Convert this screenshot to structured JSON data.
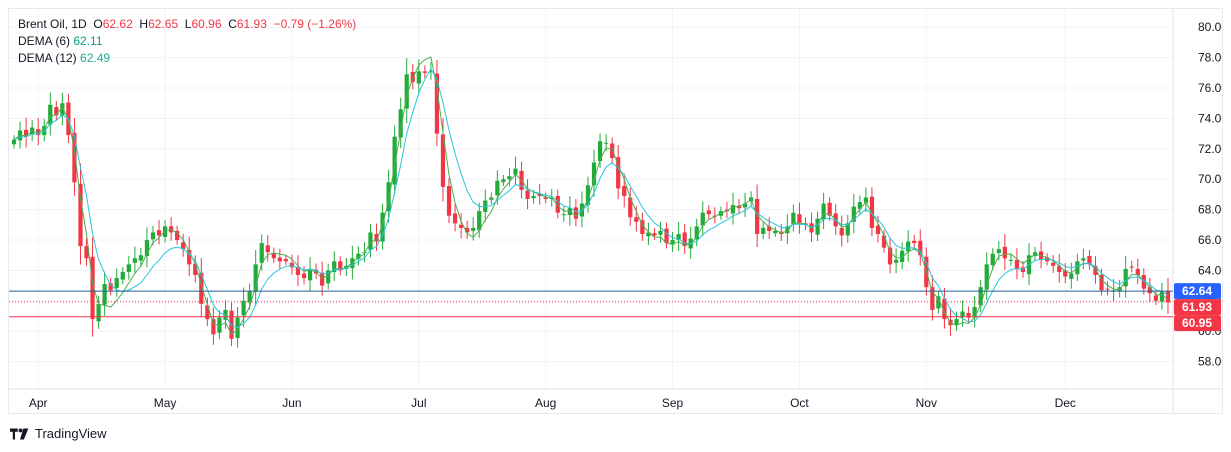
{
  "legend": {
    "symbol": "Brent Oil",
    "interval": "1D",
    "o_label": "O",
    "o_value": "62.62",
    "h_label": "H",
    "h_value": "62.65",
    "l_label": "L",
    "l_value": "60.96",
    "c_label": "C",
    "c_value": "61.93",
    "change": "−0.79 (−1.26%)",
    "dema6_label": "DEMA (6)",
    "dema6_value": "62.11",
    "dema12_label": "DEMA (12)",
    "dema12_value": "62.49"
  },
  "footer": {
    "brand": "TradingView",
    "logo_icon": "tradingview-logo-icon"
  },
  "chart_data": {
    "type": "candlestick",
    "interval": "1D",
    "y_axis_ticks": [
      "58.00",
      "60.00",
      "62.00",
      "64.00",
      "66.00",
      "68.00",
      "70.00",
      "72.00",
      "74.00",
      "76.00",
      "78.00",
      "80.00"
    ],
    "ylim": [
      56.2,
      81.2
    ],
    "x_axis_ticks": [
      "Apr",
      "May",
      "Jun",
      "Jul",
      "Aug",
      "Sep",
      "Oct",
      "Nov",
      "Dec"
    ],
    "price_labels": [
      {
        "value": "62.64",
        "color": "#2962ff",
        "line": "solid",
        "line_color": "#2a5d8f"
      },
      {
        "value": "61.93",
        "color": "#f23645",
        "line": "dotted",
        "line_color": "#f23645"
      },
      {
        "value": "60.95",
        "color": "#f23645",
        "line": "solid",
        "line_color": "#f23645"
      }
    ],
    "colors": {
      "up": "#22ab3a",
      "down": "#f23645",
      "dema6": "#4caf50",
      "dema12": "#26c6da",
      "grid": "#f0f3fa",
      "axis_text": "#131722"
    },
    "closes": [
      72.6,
      73.2,
      72.8,
      73.4,
      72.9,
      73.5,
      74.9,
      74.2,
      75.0,
      72.9,
      69.8,
      65.6,
      64.8,
      60.8,
      61.8,
      63.1,
      62.7,
      63.5,
      63.9,
      64.4,
      64.8,
      65.0,
      66.0,
      66.5,
      66.3,
      66.9,
      66.5,
      66.0,
      65.4,
      64.4,
      63.7,
      61.8,
      60.8,
      59.8,
      60.9,
      61.4,
      59.5,
      60.9,
      62.0,
      62.6,
      64.4,
      65.8,
      65.2,
      64.8,
      64.6,
      64.6,
      64.2,
      63.7,
      63.5,
      64.1,
      63.8,
      63.0,
      64.0,
      64.6,
      64.0,
      64.3,
      64.8,
      65.1,
      65.2,
      66.5,
      65.9,
      67.8,
      69.8,
      72.8,
      74.6,
      76.9,
      76.4,
      77.1,
      77.0,
      77.1,
      73.0,
      69.5,
      67.6,
      67.1,
      66.8,
      66.5,
      66.8,
      67.9,
      68.6,
      68.8,
      69.9,
      70.0,
      70.2,
      70.7,
      69.3,
      68.7,
      68.9,
      68.9,
      68.7,
      68.8,
      67.8,
      67.7,
      68.1,
      67.4,
      68.4,
      69.6,
      71.1,
      72.5,
      72.4,
      71.4,
      69.4,
      68.9,
      67.5,
      67.2,
      66.4,
      66.5,
      66.3,
      66.6,
      65.8,
      66.0,
      66.4,
      65.6,
      66.1,
      66.9,
      67.8,
      67.7,
      67.6,
      67.9,
      67.9,
      68.3,
      68.1,
      68.4,
      68.8,
      66.4,
      66.8,
      66.6,
      66.6,
      66.4,
      66.9,
      67.8,
      67.1,
      67.0,
      66.5,
      67.4,
      68.4,
      67.6,
      66.9,
      66.3,
      67.1,
      68.2,
      68.5,
      68.8,
      66.8,
      66.4,
      65.5,
      64.4,
      64.7,
      65.3,
      65.9,
      65.8,
      65.0,
      62.9,
      61.4,
      62.3,
      60.8,
      60.4,
      60.8,
      61.3,
      60.9,
      61.6,
      62.9,
      64.4,
      65.1,
      65.4,
      64.8,
      64.7,
      64.1,
      63.9,
      65.0,
      65.2,
      64.7,
      64.6,
      64.3,
      63.9,
      63.6,
      63.8,
      64.6,
      64.8,
      64.4,
      63.7,
      62.7,
      62.8,
      62.7,
      62.9,
      64.1,
      64.2,
      63.7,
      62.8,
      62.5,
      62.0,
      62.6,
      61.9
    ]
  }
}
